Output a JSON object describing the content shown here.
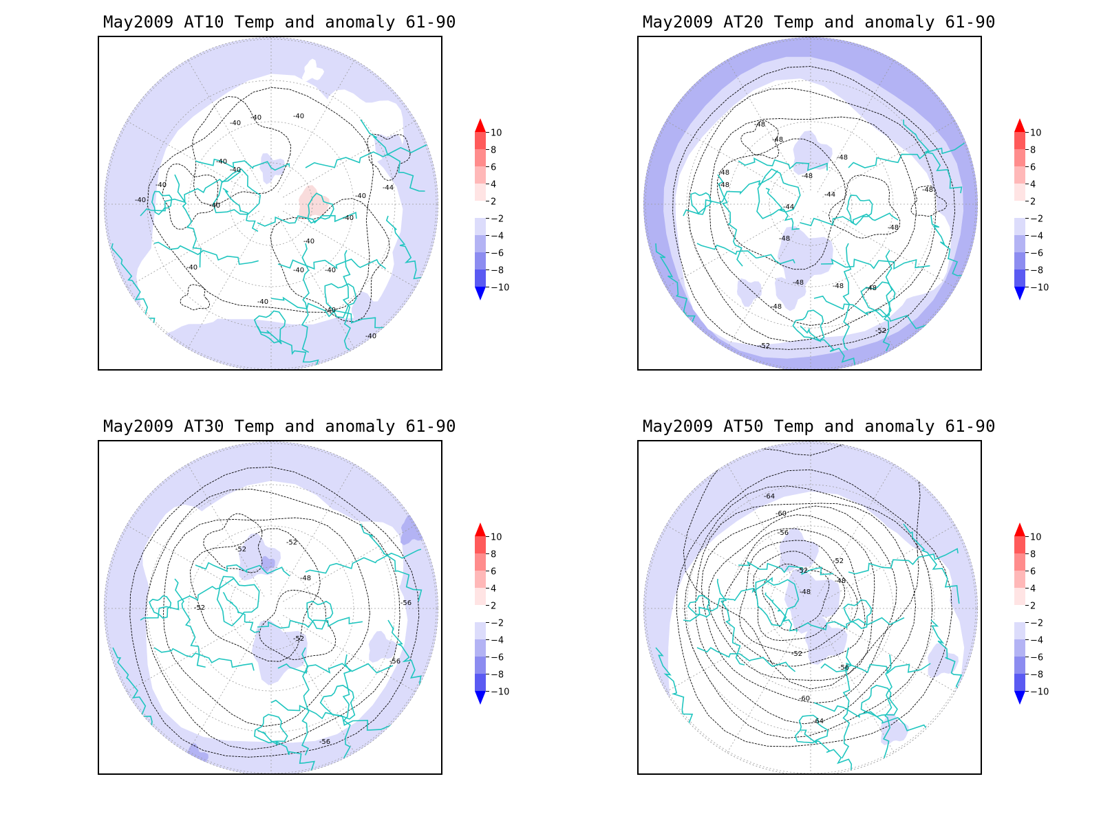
{
  "colors": {
    "coast": "#1fc5bf",
    "contour": "#000000",
    "grid": "#9a9a9a",
    "anom_neg2": "#dcdcfb",
    "anom_neg4": "#b3b3f4",
    "anom_neg6": "#8c8cf0",
    "anom_pos2": "#f9dcdc"
  },
  "colorbar": {
    "labels": [
      "10",
      "8",
      "6",
      "4",
      "2",
      "−2",
      "−4",
      "−6",
      "−8",
      "−10"
    ],
    "colors": [
      "#ff1a1a",
      "#ff5a5a",
      "#ff8c8c",
      "#ffb8b8",
      "#ffe4e4",
      "#ffffff",
      "#dcdcfb",
      "#b3b3f4",
      "#8c8cf0",
      "#5a5af2",
      "#1f1ff5"
    ],
    "top_arrow_color": "#ff0000",
    "bottom_arrow_color": "#0000ff"
  },
  "panels": [
    {
      "title": "May2009 AT10 Temp and anomaly 61-90",
      "contour_labels": [
        "-40",
        "-40",
        "-40",
        "-40",
        "-40",
        "-40",
        "-40",
        "-40",
        "-44",
        "-40",
        "-40",
        "-40",
        "-40",
        "-40",
        "-40",
        "-40",
        "-40",
        "-40"
      ],
      "anomaly_regions": [
        "anom_neg2",
        "anom_pos2"
      ]
    },
    {
      "title": "May2009 AT20 Temp and anomaly 61-90",
      "contour_labels": [
        "-48",
        "-48",
        "-48",
        "-48",
        "-48",
        "-48",
        "-44",
        "-44",
        "-48",
        "-48",
        "-48",
        "-48",
        "-48",
        "-48",
        "-48",
        "-52",
        "-52"
      ],
      "anomaly_regions": [
        "anom_neg2",
        "anom_neg4"
      ]
    },
    {
      "title": "May2009 AT30 Temp and anomaly 61-90",
      "contour_labels": [
        "-52",
        "-52",
        "-48",
        "-52",
        "-52",
        "-56",
        "-56",
        "-56"
      ],
      "anomaly_regions": [
        "anom_neg2",
        "anom_neg4"
      ]
    },
    {
      "title": "May2009 AT50 Temp and anomaly 61-90",
      "contour_labels": [
        "-64",
        "-60",
        "-56",
        "-52",
        "-52",
        "-48",
        "-48",
        "-52",
        "-56",
        "-60",
        "-64"
      ],
      "anomaly_regions": [
        "anom_neg2"
      ]
    }
  ]
}
